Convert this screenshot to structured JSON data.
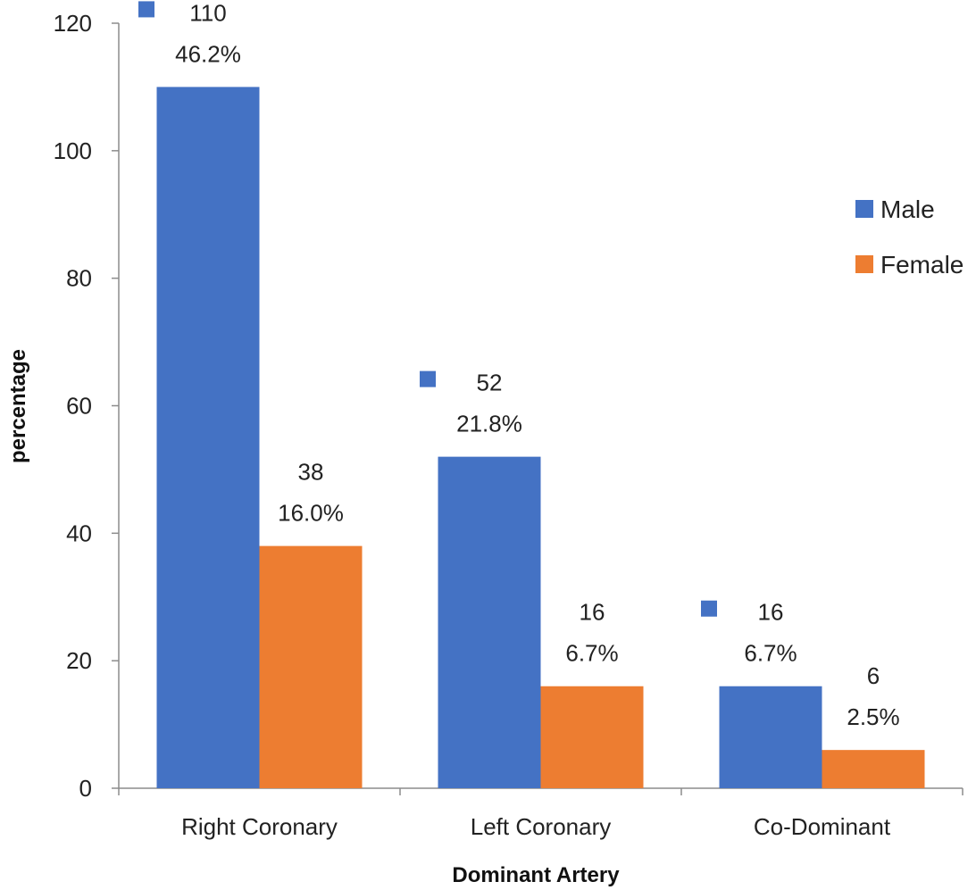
{
  "chart_data": {
    "type": "bar",
    "categories": [
      "Right Coronary",
      "Left Coronary",
      "Co-Dominant"
    ],
    "series": [
      {
        "name": "Male",
        "color": "#4472C4",
        "values": [
          110,
          52,
          16
        ],
        "percent_labels": [
          "46.2%",
          "21.8%",
          "6.7%"
        ]
      },
      {
        "name": "Female",
        "color": "#ED7D31",
        "values": [
          38,
          16,
          6
        ],
        "percent_labels": [
          "16.0%",
          "6.7%",
          "2.5%"
        ]
      }
    ],
    "xlabel": "Dominant Artery",
    "ylabel": "percentage",
    "ylim": [
      0,
      120
    ],
    "yticks": [
      0,
      20,
      40,
      60,
      80,
      100,
      120
    ],
    "grid": false,
    "legend_position": "right",
    "male_label_markers": true
  }
}
